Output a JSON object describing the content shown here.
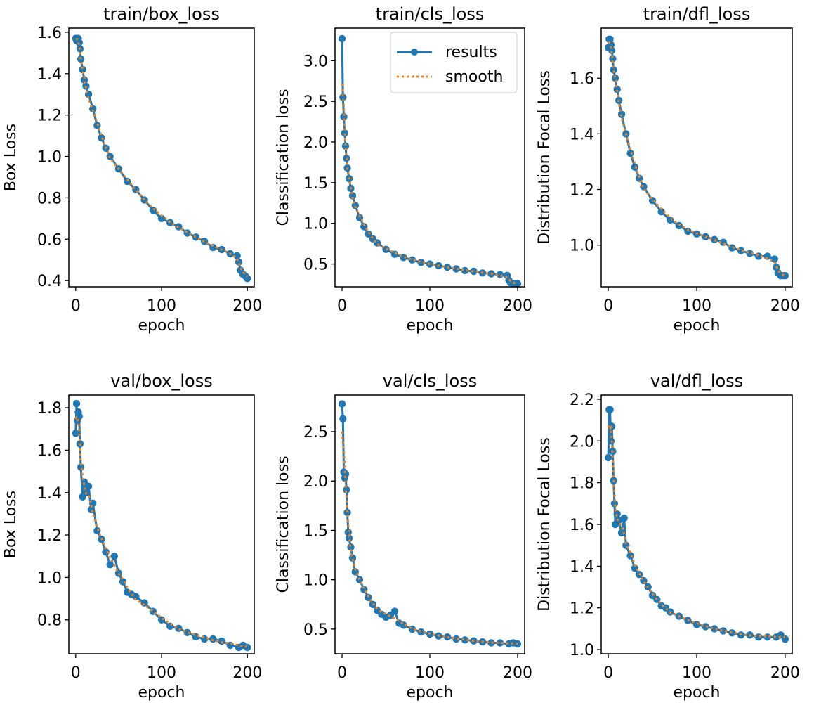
{
  "figure": {
    "legend_results": "results",
    "legend_smooth": "smooth"
  },
  "colors": {
    "results": "#1f77b4",
    "smooth": "#ff7f0e",
    "axes": "#000000",
    "background": "#ffffff"
  },
  "chart_data": [
    {
      "type": "line",
      "title": "train/box_loss",
      "xlabel": "epoch",
      "ylabel": "Box Loss",
      "xlim": [
        -8,
        208
      ],
      "ylim": [
        0.37,
        1.62
      ],
      "xticks": [
        0,
        100,
        200
      ],
      "yticks": [
        0.4,
        0.6,
        0.8,
        1.0,
        1.2,
        1.4,
        1.6
      ],
      "ytick_labels": [
        "0.4",
        "0.6",
        "0.8",
        "1.0",
        "1.2",
        "1.4",
        "1.6"
      ],
      "legend": false,
      "series": [
        {
          "name": "results",
          "x": [
            0,
            1,
            2,
            3,
            4,
            5,
            6,
            8,
            10,
            12,
            15,
            20,
            25,
            30,
            35,
            40,
            50,
            60,
            70,
            80,
            90,
            100,
            110,
            120,
            130,
            140,
            150,
            160,
            170,
            180,
            188,
            190,
            192,
            195,
            198,
            200
          ],
          "values": [
            1.57,
            1.56,
            1.57,
            1.57,
            1.55,
            1.52,
            1.47,
            1.42,
            1.37,
            1.34,
            1.3,
            1.23,
            1.15,
            1.09,
            1.04,
            1.0,
            0.94,
            0.88,
            0.84,
            0.79,
            0.74,
            0.7,
            0.68,
            0.66,
            0.63,
            0.61,
            0.59,
            0.56,
            0.55,
            0.53,
            0.52,
            0.49,
            0.45,
            0.43,
            0.42,
            0.41
          ]
        }
      ]
    },
    {
      "type": "line",
      "title": "train/cls_loss",
      "xlabel": "epoch",
      "ylabel": "Classification loss",
      "xlim": [
        -8,
        208
      ],
      "ylim": [
        0.22,
        3.4
      ],
      "xticks": [
        0,
        100,
        200
      ],
      "yticks": [
        0.5,
        1.0,
        1.5,
        2.0,
        2.5,
        3.0
      ],
      "ytick_labels": [
        "0.5",
        "1.0",
        "1.5",
        "2.0",
        "2.5",
        "3.0"
      ],
      "legend": true,
      "series": [
        {
          "name": "results",
          "x": [
            0,
            1,
            2,
            3,
            4,
            5,
            6,
            8,
            10,
            12,
            15,
            20,
            25,
            30,
            35,
            40,
            50,
            60,
            70,
            80,
            90,
            100,
            110,
            120,
            130,
            140,
            150,
            160,
            170,
            180,
            188,
            190,
            192,
            195,
            198,
            200
          ],
          "values": [
            3.27,
            2.55,
            2.31,
            2.11,
            1.95,
            1.8,
            1.68,
            1.55,
            1.43,
            1.34,
            1.22,
            1.07,
            0.96,
            0.87,
            0.81,
            0.76,
            0.68,
            0.62,
            0.58,
            0.55,
            0.52,
            0.5,
            0.48,
            0.46,
            0.44,
            0.42,
            0.41,
            0.39,
            0.38,
            0.37,
            0.36,
            0.3,
            0.27,
            0.26,
            0.26,
            0.26
          ]
        }
      ]
    },
    {
      "type": "line",
      "title": "train/dfl_loss",
      "xlabel": "epoch",
      "ylabel": "Distribution Focal Loss",
      "xlim": [
        -8,
        208
      ],
      "ylim": [
        0.85,
        1.78
      ],
      "xticks": [
        0,
        100,
        200
      ],
      "yticks": [
        1.0,
        1.2,
        1.4,
        1.6
      ],
      "ytick_labels": [
        "1.0",
        "1.2",
        "1.4",
        "1.6"
      ],
      "legend": false,
      "series": [
        {
          "name": "results",
          "x": [
            0,
            1,
            2,
            3,
            4,
            5,
            6,
            8,
            10,
            12,
            15,
            20,
            25,
            30,
            35,
            40,
            50,
            60,
            70,
            80,
            90,
            100,
            110,
            120,
            130,
            140,
            150,
            160,
            170,
            180,
            188,
            190,
            192,
            195,
            198,
            200
          ],
          "values": [
            1.71,
            1.74,
            1.74,
            1.72,
            1.7,
            1.67,
            1.63,
            1.6,
            1.56,
            1.52,
            1.47,
            1.4,
            1.33,
            1.28,
            1.24,
            1.21,
            1.16,
            1.12,
            1.09,
            1.07,
            1.05,
            1.04,
            1.03,
            1.02,
            1.01,
            0.99,
            0.98,
            0.97,
            0.96,
            0.96,
            0.95,
            0.92,
            0.9,
            0.89,
            0.89,
            0.89
          ]
        }
      ]
    },
    {
      "type": "line",
      "title": "val/box_loss",
      "xlabel": "epoch",
      "ylabel": "Box Loss",
      "xlim": [
        -8,
        208
      ],
      "ylim": [
        0.64,
        1.86
      ],
      "xticks": [
        0,
        100,
        200
      ],
      "yticks": [
        0.8,
        1.0,
        1.2,
        1.4,
        1.6,
        1.8
      ],
      "ytick_labels": [
        "0.8",
        "1.0",
        "1.2",
        "1.4",
        "1.6",
        "1.8"
      ],
      "legend": false,
      "series": [
        {
          "name": "results",
          "x": [
            0,
            1,
            2,
            3,
            4,
            5,
            6,
            8,
            10,
            12,
            15,
            18,
            20,
            25,
            30,
            35,
            40,
            45,
            50,
            55,
            60,
            65,
            70,
            80,
            90,
            100,
            110,
            120,
            130,
            140,
            150,
            160,
            170,
            180,
            190,
            195,
            200
          ],
          "values": [
            1.68,
            1.82,
            1.74,
            1.78,
            1.76,
            1.63,
            1.52,
            1.38,
            1.45,
            1.4,
            1.43,
            1.32,
            1.35,
            1.22,
            1.18,
            1.12,
            1.06,
            1.1,
            1.02,
            0.98,
            0.93,
            0.92,
            0.91,
            0.88,
            0.84,
            0.8,
            0.77,
            0.76,
            0.74,
            0.72,
            0.71,
            0.71,
            0.7,
            0.68,
            0.67,
            0.68,
            0.67
          ]
        }
      ]
    },
    {
      "type": "line",
      "title": "val/cls_loss",
      "xlabel": "epoch",
      "ylabel": "Classification loss",
      "xlim": [
        -8,
        208
      ],
      "ylim": [
        0.25,
        2.87
      ],
      "xticks": [
        0,
        100,
        200
      ],
      "yticks": [
        0.5,
        1.0,
        1.5,
        2.0,
        2.5
      ],
      "ytick_labels": [
        "0.5",
        "1.0",
        "1.5",
        "2.0",
        "2.5"
      ],
      "legend": false,
      "series": [
        {
          "name": "results",
          "x": [
            0,
            1,
            2,
            3,
            4,
            5,
            6,
            7,
            8,
            10,
            12,
            15,
            20,
            25,
            30,
            35,
            40,
            45,
            50,
            55,
            60,
            65,
            70,
            80,
            90,
            100,
            110,
            120,
            130,
            140,
            150,
            160,
            170,
            180,
            190,
            195,
            200
          ],
          "values": [
            2.78,
            2.63,
            2.09,
            2.03,
            2.07,
            1.91,
            1.68,
            1.48,
            1.42,
            1.33,
            1.22,
            1.08,
            1.0,
            0.9,
            0.82,
            0.75,
            0.69,
            0.65,
            0.62,
            0.64,
            0.68,
            0.56,
            0.54,
            0.5,
            0.47,
            0.45,
            0.43,
            0.42,
            0.4,
            0.39,
            0.38,
            0.37,
            0.36,
            0.36,
            0.35,
            0.36,
            0.35
          ]
        }
      ]
    },
    {
      "type": "line",
      "title": "val/dfl_loss",
      "xlabel": "epoch",
      "ylabel": "Distribution Focal Loss",
      "xlim": [
        -8,
        208
      ],
      "ylim": [
        0.98,
        2.22
      ],
      "xticks": [
        0,
        100,
        200
      ],
      "yticks": [
        1.0,
        1.2,
        1.4,
        1.6,
        1.8,
        2.0,
        2.2
      ],
      "ytick_labels": [
        "1.0",
        "1.2",
        "1.4",
        "1.6",
        "1.8",
        "2.0",
        "2.2"
      ],
      "legend": false,
      "series": [
        {
          "name": "results",
          "x": [
            0,
            1,
            2,
            3,
            4,
            5,
            6,
            7,
            8,
            10,
            12,
            15,
            18,
            20,
            25,
            30,
            35,
            40,
            45,
            50,
            55,
            60,
            65,
            70,
            80,
            90,
            100,
            110,
            120,
            130,
            140,
            150,
            160,
            170,
            180,
            190,
            195,
            200
          ],
          "values": [
            1.92,
            2.15,
            2.15,
            2.0,
            2.07,
            1.95,
            1.81,
            1.7,
            1.6,
            1.65,
            1.62,
            1.56,
            1.63,
            1.5,
            1.45,
            1.39,
            1.36,
            1.33,
            1.3,
            1.26,
            1.24,
            1.21,
            1.2,
            1.18,
            1.16,
            1.14,
            1.12,
            1.11,
            1.1,
            1.09,
            1.08,
            1.07,
            1.07,
            1.06,
            1.06,
            1.06,
            1.07,
            1.05
          ]
        }
      ]
    }
  ]
}
